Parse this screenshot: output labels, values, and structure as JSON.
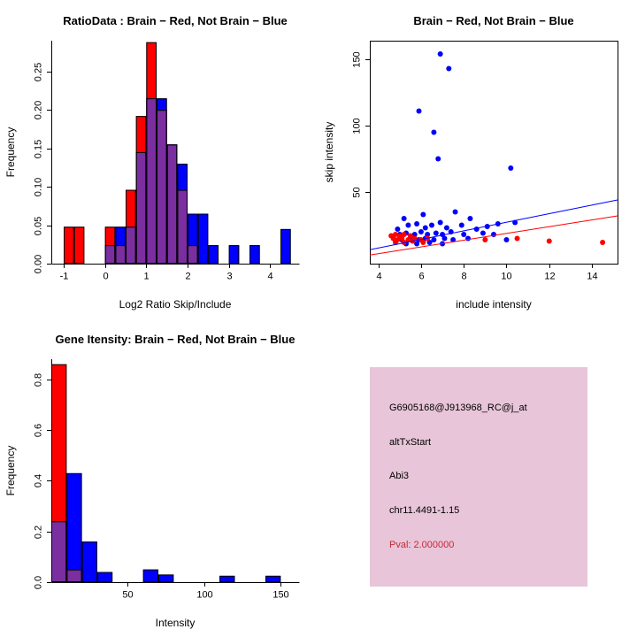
{
  "figure": {
    "background": "#ffffff",
    "plot_red": "#ff0000",
    "plot_blue": "#0000ff",
    "overlap_purple": "#7a2ea0"
  },
  "chart_data": [
    {
      "id": "ratio-hist",
      "type": "bar",
      "chart_kind": "overlaid-histogram",
      "title": "RatioData : Brain − Red, Not Brain − Blue",
      "xlabel": "Log2 Ratio Skip/Include",
      "ylabel": "Frequency",
      "xlim": [
        -1.3,
        4.7
      ],
      "ylim": [
        0,
        0.29
      ],
      "xticks": [
        -1,
        0,
        1,
        2,
        3,
        4
      ],
      "xtick_labels": [
        "-1",
        "0",
        "1",
        "2",
        "3",
        "4"
      ],
      "yticks": [
        0,
        0.05,
        0.1,
        0.15,
        0.2,
        0.25
      ],
      "ytick_labels": [
        "0.00",
        "0.05",
        "0.10",
        "0.15",
        "0.20",
        "0.25"
      ],
      "bin_start": -1.0,
      "bin_width": 0.25,
      "overlap_color": "#7a2ea0",
      "legend_note": "Brain = red, Not Brain = blue, overlap = purple",
      "series": [
        {
          "name": "Brain",
          "color": "#ff0000",
          "values": [
            0.048,
            0.048,
            0,
            0,
            0.048,
            0.024,
            0.096,
            0.192,
            0.288,
            0.2,
            0.155,
            0.096,
            0.024,
            0,
            0,
            0,
            0,
            0,
            0,
            0,
            0,
            0
          ]
        },
        {
          "name": "Not Brain",
          "color": "#0000ff",
          "values": [
            0,
            0,
            0,
            0,
            0.024,
            0.048,
            0.048,
            0.145,
            0.215,
            0.215,
            0.155,
            0.13,
            0.065,
            0.065,
            0.024,
            0,
            0.024,
            0,
            0.024,
            0,
            0,
            0.045
          ]
        }
      ]
    },
    {
      "id": "intensity-scatter",
      "type": "scatter",
      "title": "Brain − Red, Not Brain − Blue",
      "xlabel": "include intensity",
      "ylabel": "skip intensity",
      "xlim": [
        3.6,
        15.2
      ],
      "ylim": [
        -4,
        164
      ],
      "xticks": [
        4,
        6,
        8,
        10,
        12,
        14
      ],
      "xtick_labels": [
        "4",
        "6",
        "8",
        "10",
        "12",
        "14"
      ],
      "yticks": [
        50,
        100,
        150
      ],
      "ytick_labels": [
        "50",
        "100",
        "150"
      ],
      "box": true,
      "series": [
        {
          "name": "Not Brain",
          "color": "#0000ff",
          "points": [
            [
              6.9,
              154
            ],
            [
              7.3,
              143
            ],
            [
              5.9,
              111
            ],
            [
              6.6,
              95
            ],
            [
              6.8,
              75
            ],
            [
              10.2,
              68
            ],
            [
              5.2,
              30
            ],
            [
              6.1,
              33
            ],
            [
              7.6,
              35
            ],
            [
              8.3,
              30
            ],
            [
              9.6,
              26
            ],
            [
              10.4,
              27
            ],
            [
              4.9,
              22
            ],
            [
              5.4,
              25
            ],
            [
              5.8,
              26
            ],
            [
              6.2,
              23
            ],
            [
              6.5,
              25
            ],
            [
              6.9,
              27
            ],
            [
              7.2,
              23
            ],
            [
              7.9,
              25
            ],
            [
              8.6,
              22
            ],
            [
              9.1,
              24
            ],
            [
              5,
              18
            ],
            [
              5.3,
              19
            ],
            [
              5.7,
              18
            ],
            [
              6,
              20
            ],
            [
              6.3,
              18
            ],
            [
              6.7,
              19
            ],
            [
              7,
              18
            ],
            [
              7.4,
              20
            ],
            [
              8,
              18
            ],
            [
              8.9,
              19
            ],
            [
              9.4,
              18
            ],
            [
              5.1,
              14
            ],
            [
              5.5,
              15
            ],
            [
              5.9,
              14
            ],
            [
              6.2,
              15
            ],
            [
              6.6,
              14
            ],
            [
              7.1,
              15
            ],
            [
              7.5,
              14
            ],
            [
              8.2,
              15
            ],
            [
              10,
              14
            ],
            [
              5.3,
              11
            ],
            [
              5.8,
              11
            ],
            [
              6.4,
              12
            ],
            [
              7,
              11
            ]
          ],
          "fit_line": {
            "x": [
              3.6,
              15.2
            ],
            "y": [
              6.5,
              44
            ]
          }
        },
        {
          "name": "Brain",
          "color": "#ff0000",
          "points": [
            [
              4.6,
              17
            ],
            [
              4.8,
              18
            ],
            [
              5,
              17
            ],
            [
              5.2,
              18
            ],
            [
              5.5,
              17
            ],
            [
              4.7,
              15
            ],
            [
              4.9,
              14
            ],
            [
              5.1,
              15
            ],
            [
              5.4,
              14
            ],
            [
              5.7,
              15
            ],
            [
              6,
              14
            ],
            [
              6.3,
              15
            ],
            [
              4.8,
              12
            ],
            [
              5.2,
              12
            ],
            [
              5.6,
              13
            ],
            [
              6.1,
              12
            ],
            [
              9,
              14
            ],
            [
              10.5,
              15
            ],
            [
              12,
              13
            ],
            [
              14.5,
              12
            ]
          ],
          "fit_line": {
            "x": [
              3.6,
              15.2
            ],
            "y": [
              2.5,
              32
            ]
          }
        }
      ]
    },
    {
      "id": "gene-hist",
      "type": "bar",
      "chart_kind": "overlaid-histogram",
      "title": "Gene Itensity: Brain − Red, Not Brain − Blue",
      "xlabel": "Intensity",
      "ylabel": "Frequency",
      "xlim": [
        0,
        162
      ],
      "ylim": [
        0,
        0.88
      ],
      "xticks": [
        50,
        100,
        150
      ],
      "xtick_labels": [
        "50",
        "100",
        "150"
      ],
      "yticks": [
        0,
        0.2,
        0.4,
        0.6,
        0.8
      ],
      "ytick_labels": [
        "0.0",
        "0.2",
        "0.4",
        "0.6",
        "0.8"
      ],
      "bin_start": 0,
      "bin_width": 10,
      "overlap_color": "#7a2ea0",
      "legend_note": "Brain = red, Not Brain = blue, overlap = purple",
      "series": [
        {
          "name": "Brain",
          "color": "#ff0000",
          "values": [
            0.86,
            0.05,
            0,
            0,
            0,
            0,
            0,
            0,
            0,
            0,
            0,
            0,
            0,
            0,
            0,
            0
          ]
        },
        {
          "name": "Not Brain",
          "color": "#0000ff",
          "values": [
            0.24,
            0.43,
            0.16,
            0.04,
            0,
            0,
            0.05,
            0.03,
            0,
            0,
            0,
            0.025,
            0,
            0,
            0.025,
            0
          ]
        }
      ]
    }
  ],
  "info_panel": {
    "background": "#e8c5d8",
    "lines": [
      {
        "text": "G6905168@J913968_RC@j_at",
        "color": "#000000"
      },
      {
        "text": "altTxStart",
        "color": "#000000"
      },
      {
        "text": "Abi3",
        "color": "#000000"
      },
      {
        "text": "chr11.4491-1.15",
        "color": "#000000"
      },
      {
        "text": "Pval: 2.000000",
        "color": "#c62839"
      }
    ]
  }
}
